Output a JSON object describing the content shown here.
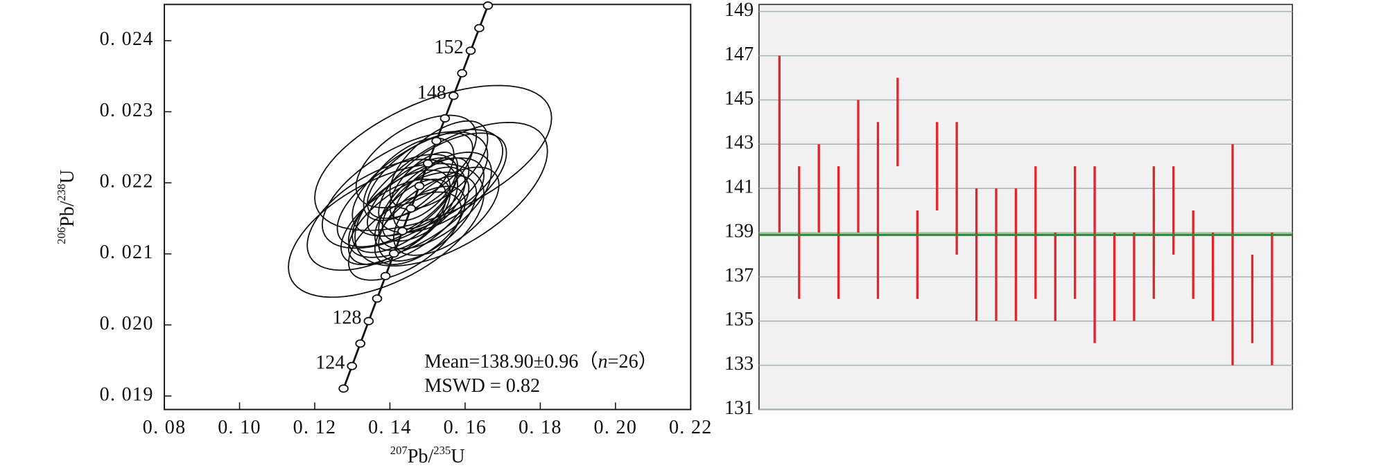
{
  "chart_data": [
    {
      "type": "concordia",
      "xlabel": [
        "207",
        "Pb/",
        "235",
        "U"
      ],
      "ylabel": [
        "206",
        "Pb/",
        "238",
        "U"
      ],
      "xlim": [
        0.08,
        0.22
      ],
      "ylim": [
        0.01881,
        0.02451
      ],
      "xticks": [
        {
          "value": 0.08,
          "label": "0. 08"
        },
        {
          "value": 0.1,
          "label": "0. 10"
        },
        {
          "value": 0.12,
          "label": "0. 12"
        },
        {
          "value": 0.14,
          "label": "0. 14"
        },
        {
          "value": 0.16,
          "label": "0. 16"
        },
        {
          "value": 0.18,
          "label": "0. 18"
        },
        {
          "value": 0.2,
          "label": "0. 20"
        },
        {
          "value": 0.22,
          "label": "0. 22"
        }
      ],
      "yticks": [
        {
          "value": 0.019,
          "label": "0. 019"
        },
        {
          "value": 0.02,
          "label": "0. 020"
        },
        {
          "value": 0.021,
          "label": "0. 021"
        },
        {
          "value": 0.022,
          "label": "0. 022"
        },
        {
          "value": 0.023,
          "label": "0. 023"
        },
        {
          "value": 0.024,
          "label": "0. 024"
        }
      ],
      "concordia": {
        "x": [
          0.12767,
          0.1299,
          0.13212,
          0.13435,
          0.13659,
          0.13883,
          0.14107,
          0.14332,
          0.14558,
          0.14784,
          0.1501,
          0.15237,
          0.15464,
          0.15692,
          0.1592,
          0.16148,
          0.16377,
          0.16607
        ],
        "y": [
          0.019105,
          0.019422,
          0.019738,
          0.020054,
          0.020371,
          0.020688,
          0.021005,
          0.021321,
          0.021638,
          0.021955,
          0.022272,
          0.022589,
          0.022907,
          0.023224,
          0.023542,
          0.023859,
          0.024177,
          0.024494
        ],
        "labels": [
          null,
          124,
          null,
          128,
          null,
          null,
          null,
          null,
          null,
          null,
          null,
          null,
          null,
          148,
          null,
          152,
          null,
          null
        ]
      },
      "ellipses": {
        "x": [
          0.139,
          0.1515,
          0.1563,
          0.144,
          0.147,
          0.15,
          0.145,
          0.152,
          0.148,
          0.143,
          0.154,
          0.146,
          0.149,
          0.141,
          0.15,
          0.153,
          0.145,
          0.148,
          0.151,
          0.144,
          0.142,
          0.155,
          0.147,
          0.138,
          0.149,
          0.146
        ],
        "y": [
          0.02133,
          0.02235,
          0.02184,
          0.0219,
          0.02165,
          0.022,
          0.0215,
          0.02175,
          0.0221,
          0.0216,
          0.022,
          0.0218,
          0.0217,
          0.02145,
          0.0215,
          0.02225,
          0.02205,
          0.0214,
          0.02185,
          0.02125,
          0.02175,
          0.0216,
          0.0223,
          0.02155,
          0.02195,
          0.02155
        ],
        "sx": [
          0.026,
          0.0315,
          0.0256,
          0.022,
          0.018,
          0.02,
          0.016,
          0.015,
          0.014,
          0.013,
          0.017,
          0.012,
          0.011,
          0.014,
          0.013,
          0.013,
          0.012,
          0.012,
          0.01,
          0.015,
          0.016,
          0.014,
          0.016,
          0.02,
          0.009,
          0.01
        ],
        "sy": [
          0.00094,
          0.00102,
          0.00101,
          0.00082,
          0.0007,
          0.00075,
          0.00065,
          0.00068,
          0.0006,
          0.00058,
          0.0007,
          0.00055,
          0.00052,
          0.0006,
          0.0006,
          0.00062,
          0.00058,
          0.00055,
          0.0005,
          0.00062,
          0.00065,
          0.00062,
          0.00065,
          0.00078,
          0.00048,
          0.0005
        ],
        "rho": [
          0.55,
          0.55,
          0.6,
          0.6,
          0.65,
          0.6,
          0.65,
          0.6,
          0.65,
          0.6,
          0.6,
          0.65,
          0.6,
          0.6,
          0.6,
          0.6,
          0.6,
          0.6,
          0.65,
          0.6,
          0.6,
          0.6,
          0.55,
          0.55,
          0.6,
          0.6
        ]
      },
      "annotation": [
        "Mean=138.90±0.96（",
        "n",
        "=26）"
      ],
      "annotation2": "MSWD = 0.82"
    },
    {
      "type": "errorbar",
      "ylim": [
        131,
        149.32
      ],
      "yticks": [
        131,
        133,
        135,
        137,
        139,
        141,
        143,
        145,
        147,
        149
      ],
      "grid": true,
      "mean_line": 138.9,
      "mean_color": "#2e8b2e",
      "series": [
        {
          "color": "#e3242b",
          "values": [
            143,
            139,
            141,
            139,
            142,
            140,
            144,
            138,
            142,
            141,
            138,
            138,
            138,
            139,
            137,
            139,
            138,
            137,
            137,
            139,
            140,
            138,
            137,
            138,
            136,
            136
          ],
          "errors": [
            4,
            3,
            2,
            3,
            3,
            4,
            2,
            2,
            2,
            3,
            3,
            3,
            3,
            3,
            2,
            3,
            4,
            2,
            2,
            3,
            2,
            2,
            2,
            5,
            2,
            3
          ]
        }
      ]
    }
  ]
}
